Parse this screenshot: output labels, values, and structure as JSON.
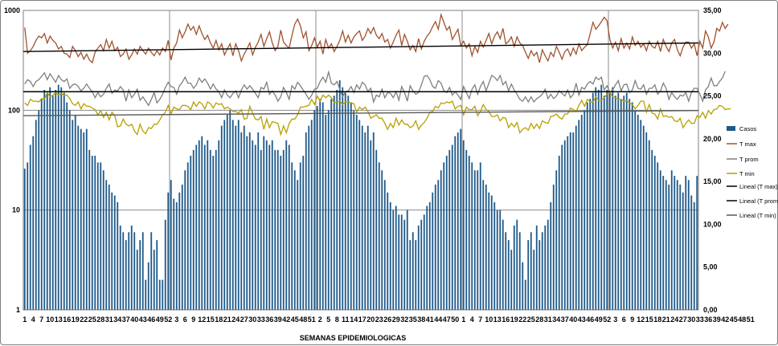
{
  "chart_data": {
    "type": "bar+line",
    "xlabel": "SEMANAS EPIDEMIOLOGICAS",
    "y_left": {
      "scale": "log",
      "range": [
        1,
        1000
      ],
      "ticks": [
        "1",
        "10",
        "100",
        "1000"
      ]
    },
    "y_right": {
      "scale": "linear",
      "range": [
        0,
        35
      ],
      "ticks": [
        "0,00",
        "5,00",
        "10,00",
        "15,00",
        "20,00",
        "25,00",
        "30,00",
        "35,00"
      ]
    },
    "x_tick_labels": [
      "1",
      "4",
      "7",
      "10",
      "13",
      "16",
      "19",
      "22",
      "25",
      "28",
      "31",
      "34",
      "37",
      "40",
      "43",
      "46",
      "49",
      "52",
      "3",
      "6",
      "9",
      "12",
      "15",
      "18",
      "21",
      "24",
      "27",
      "30",
      "33",
      "36",
      "39",
      "42",
      "45",
      "48",
      "51",
      "2",
      "5",
      "8",
      "11",
      "14",
      "17",
      "20",
      "23",
      "26",
      "29",
      "32",
      "35",
      "38",
      "41",
      "44",
      "47",
      "50",
      "1",
      "4",
      "7",
      "10",
      "13",
      "16",
      "19",
      "22",
      "25",
      "28",
      "31",
      "34",
      "37",
      "40",
      "43",
      "46",
      "49",
      "52",
      "3",
      "6",
      "9",
      "12",
      "15",
      "18",
      "21",
      "24",
      "27",
      "30",
      "33",
      "36",
      "39",
      "42",
      "45",
      "48",
      "51"
    ],
    "legend": [
      {
        "name": "Casos",
        "color": "#1f5a8a",
        "kind": "bar"
      },
      {
        "name": "T max",
        "color": "#a0522d",
        "kind": "line"
      },
      {
        "name": "T prom",
        "color": "#7f7f7f",
        "kind": "line"
      },
      {
        "name": "T min",
        "color": "#b8a000",
        "kind": "line"
      },
      {
        "name": "Lineal (T max)",
        "color": "#000000",
        "kind": "line"
      },
      {
        "name": "Lineal (T prom)",
        "color": "#000000",
        "kind": "line"
      },
      {
        "name": "Lineal (T min)",
        "color": "#595959",
        "kind": "line"
      }
    ],
    "series": [
      {
        "name": "Casos",
        "axis": "left",
        "values": [
          26,
          30,
          45,
          55,
          80,
          100,
          130,
          160,
          150,
          170,
          140,
          160,
          180,
          170,
          150,
          120,
          100,
          80,
          90,
          70,
          65,
          60,
          65,
          40,
          35,
          35,
          30,
          30,
          25,
          20,
          18,
          15,
          14,
          12,
          7,
          6,
          5,
          6,
          7,
          6,
          4,
          5,
          6,
          2,
          3,
          6,
          4,
          5,
          2,
          2,
          8,
          15,
          20,
          13,
          12,
          15,
          18,
          25,
          30,
          35,
          40,
          45,
          50,
          55,
          45,
          50,
          40,
          35,
          40,
          50,
          70,
          80,
          90,
          100,
          80,
          70,
          80,
          60,
          70,
          55,
          60,
          50,
          45,
          60,
          40,
          55,
          50,
          45,
          50,
          40,
          40,
          35,
          40,
          50,
          45,
          30,
          25,
          20,
          30,
          35,
          60,
          70,
          80,
          100,
          110,
          130,
          120,
          90,
          100,
          130,
          140,
          160,
          200,
          170,
          150,
          140,
          120,
          100,
          90,
          80,
          70,
          60,
          70,
          50,
          60,
          40,
          30,
          25,
          20,
          15,
          12,
          10,
          11,
          9,
          9,
          8,
          10,
          5,
          6,
          5,
          7,
          8,
          9,
          11,
          12,
          15,
          18,
          20,
          25,
          30,
          35,
          40,
          45,
          55,
          60,
          65,
          50,
          40,
          35,
          30,
          25,
          25,
          30,
          20,
          18,
          15,
          14,
          12,
          10,
          10,
          8,
          6,
          5,
          4,
          7,
          8,
          6,
          3,
          2,
          5,
          6,
          4,
          7,
          5,
          6,
          7,
          8,
          12,
          18,
          25,
          35,
          45,
          50,
          55,
          60,
          60,
          70,
          80,
          90,
          100,
          120,
          130,
          150,
          170,
          160,
          180,
          140,
          160,
          150,
          170,
          140,
          150,
          130,
          140,
          150,
          130,
          120,
          100,
          90,
          80,
          70,
          60,
          50,
          40,
          35,
          30,
          25,
          22,
          20,
          18,
          25,
          22,
          20,
          18,
          15,
          22,
          20,
          14,
          12,
          22
        ]
      },
      {
        "name": "T max",
        "axis": "right",
        "values": [
          33,
          30,
          30.3,
          30.8,
          31.5,
          32,
          31.8,
          32.3,
          31.2,
          32,
          31.5,
          31.2,
          30.5,
          30.8,
          30,
          29.9,
          29.5,
          30.8,
          30.3,
          29.6,
          30.1,
          29.3,
          29.9,
          29.2,
          28.9,
          30.1,
          30.6,
          31,
          30.3,
          31.6,
          30.6,
          31.4,
          30.3,
          30.7,
          29.6,
          29.9,
          30.5,
          29.3,
          29.8,
          30.5,
          29.9,
          30.8,
          30.3,
          29.9,
          30.6,
          30.1,
          29.7,
          30.3,
          29.8,
          30.6,
          30.2,
          31.5,
          29.2,
          30.6,
          31.2,
          32.7,
          31.8,
          32.5,
          33.4,
          32.7,
          33.1,
          32.2,
          33.2,
          32.3,
          31.6,
          32.1,
          31.2,
          30.6,
          31.5,
          30.4,
          31.1,
          29.8,
          30.5,
          31.1,
          29.7,
          31.1,
          30.3,
          29.1,
          29.9,
          30.5,
          31.2,
          29.8,
          30.7,
          31.3,
          32.2,
          30.8,
          31.7,
          32.5,
          31.2,
          30.3,
          30.8,
          32.7,
          31.3,
          30.9,
          30.6,
          32.1,
          33.4,
          34,
          33.2,
          31.8,
          32.5,
          30.3,
          30.9,
          31.8,
          30.7,
          31.4,
          29.9,
          31.6,
          30.6,
          31.1,
          30.2,
          30.8,
          31.5,
          32.6,
          31.3,
          32.1,
          31.2,
          31.9,
          32.3,
          32.6,
          31.5,
          32,
          32.9,
          32.3,
          33,
          32.1,
          31.7,
          32.3,
          31.3,
          31.6,
          30.6,
          31.3,
          32.1,
          32.7,
          30.9,
          32.2,
          31.4,
          30.4,
          30.9,
          30.2,
          31.7,
          30.5,
          31.4,
          32,
          32.4,
          33.1,
          33.7,
          32.8,
          34.5,
          33.6,
          32.7,
          33.1,
          31.6,
          32.2,
          32.8,
          30.9,
          31.4,
          30.6,
          31.1,
          29.7,
          30.8,
          30.1,
          31.4,
          30.7,
          31.5,
          32.3,
          31.1,
          32,
          32.5,
          31.7,
          32.9,
          31.1,
          31.4,
          31.9,
          30.8,
          31.9,
          31.2,
          30.9,
          30.1,
          29.4,
          30.3,
          29.7,
          30.1,
          28.9,
          30.4,
          29.7,
          29.1,
          30.1,
          29.6,
          30.8,
          30.1,
          29.3,
          30.2,
          30.5,
          29.7,
          30.6,
          29.9,
          31.1,
          30.3,
          30.7,
          31,
          32.3,
          33.6,
          32.8,
          33.2,
          33.7,
          34.2,
          33.8,
          31.6,
          30.6,
          31.3,
          30.3,
          31.7,
          30.6,
          31.2,
          30.5,
          31.9,
          30.9,
          31.4,
          30.7,
          31.1,
          30.3,
          31.4,
          30.8,
          30.6,
          31.4,
          30.2,
          31.6,
          30.8,
          30.2,
          31.2,
          31.6,
          30.4,
          29.7,
          30.7,
          31.3,
          31.3,
          30.6,
          31.1,
          29.7,
          31.4,
          30.6,
          32.6,
          31.9,
          30.6,
          31.3,
          32.9,
          32.6,
          33.6,
          32.9,
          33.4
        ]
      },
      {
        "name": "T prom",
        "axis": "right",
        "values": [
          26.4,
          26.9,
          26.7,
          26.1,
          26.7,
          26.9,
          27.3,
          27.7,
          26.9,
          27.6,
          27.1,
          26.6,
          27.4,
          26.9,
          26.7,
          27,
          25.9,
          26.3,
          26.4,
          26.1,
          25.6,
          25.9,
          26.4,
          25.9,
          25.5,
          24.8,
          25.4,
          24.9,
          25.2,
          25.9,
          26.4,
          25.3,
          25.7,
          25.6,
          26.1,
          25.7,
          24.4,
          25.7,
          24.8,
          25.2,
          25.8,
          24.5,
          24.9,
          24.4,
          23.9,
          24.6,
          25.4,
          24.2,
          24.6,
          25.2,
          26,
          26.6,
          26.1,
          26,
          25.2,
          26.2,
          26.6,
          27.2,
          26.5,
          26.5,
          25.9,
          26.3,
          27.1,
          26.6,
          27,
          26.5,
          25.8,
          26.4,
          25.8,
          25.5,
          24.8,
          25.7,
          25.1,
          24.8,
          25.3,
          25.6,
          24.8,
          25.7,
          26.3,
          25.8,
          26.2,
          25.8,
          25.3,
          24.8,
          26,
          25.8,
          26.6,
          25.2,
          25.6,
          25.1,
          24.4,
          24.9,
          26,
          25.4,
          24.6,
          26.2,
          25.8,
          26.6,
          26.2,
          25.7,
          25.2,
          24.6,
          25.1,
          25.8,
          25.9,
          26.7,
          27.2,
          26.6,
          27.8,
          26.5,
          26.3,
          26.7,
          25.8,
          24.9,
          25.5,
          25.6,
          26.1,
          25.4,
          26.3,
          25.8,
          26.6,
          26.3,
          25.5,
          25.9,
          24.3,
          25.1,
          24.9,
          25.8,
          24.8,
          25.4,
          25.3,
          24.8,
          25.5,
          24.5,
          26.1,
          25.4,
          24.4,
          26.2,
          25.6,
          25.2,
          25.4,
          26.3,
          27.3,
          27.4,
          26.9,
          26.1,
          25.9,
          26.8,
          26.5,
          25.6,
          25.4,
          26,
          25.1,
          25.5,
          25.1,
          24.6,
          26.1,
          25.4,
          24.7,
          25.8,
          26.3,
          25.2,
          26.1,
          26.7,
          25.6,
          26.5,
          27.4,
          27.2,
          26.8,
          27.4,
          26.3,
          26.7,
          25.6,
          26.4,
          25.7,
          25.2,
          24.6,
          24.4,
          24.9,
          24.3,
          24.9,
          24.3,
          24.7,
          24.9,
          25.2,
          25.8,
          24.7,
          25.2,
          24.7,
          25,
          25.6,
          25.3,
          25,
          25.7,
          24.8,
          25.2,
          26.5,
          25.1,
          26,
          25.8,
          26.4,
          26.7,
          26.4,
          27.2,
          26.9,
          27.2,
          25.7,
          26.2,
          25.4,
          25.7,
          26.3,
          26.8,
          25.6,
          26.3,
          26.4,
          25.4,
          25.7,
          26.8,
          25.9,
          25.8,
          26.3,
          25.2,
          25.9,
          25.9,
          26.3,
          25.2,
          25.6,
          26.5,
          25.9,
          24.6,
          25.4,
          24.9,
          24.6,
          25.1,
          25,
          25.4,
          24.4,
          25.4,
          25.9,
          25.9,
          25.2,
          24.4,
          25.7,
          26.1,
          27.1,
          26.2,
          26.2,
          26.7,
          27.1,
          27.9
        ]
      },
      {
        "name": "T min",
        "axis": "right",
        "values": [
          24.2,
          23.9,
          24.6,
          24.4,
          24.4,
          24.3,
          24.7,
          24.6,
          25.4,
          24.9,
          25.1,
          25.4,
          25.1,
          25.3,
          25.1,
          25.1,
          24.7,
          24.1,
          23.9,
          24.3,
          23.5,
          24.1,
          23.8,
          23.8,
          23.6,
          23.4,
          22.8,
          23.3,
          22.5,
          23.1,
          22.2,
          23.1,
          22.7,
          21.4,
          21.5,
          22.3,
          21.7,
          21.5,
          21.7,
          20.9,
          20.5,
          21.7,
          20.9,
          20.6,
          21.3,
          21.2,
          21.7,
          21.7,
          22.2,
          22.8,
          23.1,
          23.9,
          22.9,
          23.7,
          23.5,
          23.4,
          23.9,
          23.9,
          23.8,
          23.4,
          24.3,
          23.8,
          24.3,
          24.1,
          23.5,
          24.3,
          24.1,
          23.6,
          24.2,
          24,
          24.1,
          23.5,
          23.7,
          23.5,
          23.2,
          23.2,
          23,
          23.4,
          22.3,
          22.4,
          23.8,
          23,
          22.3,
          22.2,
          22.6,
          21.1,
          22.3,
          21.3,
          22,
          21.9,
          21.8,
          20.5,
          21.5,
          20.7,
          21.8,
          22.3,
          22.3,
          22.8,
          23.7,
          23.7,
          23.8,
          23.9,
          24.6,
          24,
          25,
          24.4,
          25.1,
          24.8,
          25.1,
          24.8,
          24.2,
          24.3,
          24.4,
          24,
          24.3,
          24.3,
          24.2,
          24.1,
          23.1,
          23.7,
          23.4,
          23.7,
          23.2,
          22.4,
          22.6,
          22.8,
          22.4,
          22.4,
          21.8,
          21.1,
          21.8,
          21.3,
          22.4,
          21.6,
          22.2,
          21.7,
          21.7,
          21.3,
          21.5,
          22.1,
          21.1,
          21.6,
          21.9,
          22.4,
          23.1,
          23.2,
          23.8,
          23.6,
          24.2,
          24.1,
          24.3,
          24.2,
          24.4,
          23.5,
          23.8,
          23.9,
          22.8,
          23.7,
          23.4,
          23.4,
          23.8,
          22.7,
          23.2,
          24,
          23.4,
          23.2,
          22.6,
          22.6,
          22.8,
          22.1,
          22.5,
          22.4,
          21.3,
          21.8,
          21.4,
          21.9,
          20.7,
          21.1,
          21.3,
          21,
          21.8,
          21.2,
          21.7,
          21.2,
          22.1,
          21.9,
          21.8,
          22.6,
          22.7,
          22.9,
          22.5,
          22.3,
          22.9,
          22.9,
          23.6,
          23.4,
          23.2,
          23.9,
          24.5,
          23.8,
          24.6,
          24.3,
          24.3,
          24.9,
          24.5,
          24.5,
          24.8,
          25.2,
          25.4,
          24.9,
          24.8,
          24.6,
          24.6,
          24.4,
          24.4,
          24.2,
          24,
          23.5,
          23.9,
          24.4,
          24.4,
          23.1,
          24,
          23,
          22.9,
          22.3,
          23.5,
          22.6,
          22.7,
          22.5,
          22.6,
          22.1,
          22,
          22.4,
          21.3,
          21.8,
          22.2,
          21.8,
          21.8,
          22.7,
          22.5,
          23.1,
          22.4,
          23.3,
          22.9,
          23.4,
          23.5,
          23.9,
          23.8,
          23.4,
          23.5,
          23.5
        ]
      }
    ],
    "trendlines": [
      {
        "name": "Lineal (T max)",
        "start": 30.2,
        "end": 31.2
      },
      {
        "name": "Lineal (T prom)",
        "start": 25.5,
        "end": 25.5
      },
      {
        "name": "Lineal (T min)",
        "start": 22.7,
        "end": 23.3
      }
    ]
  }
}
